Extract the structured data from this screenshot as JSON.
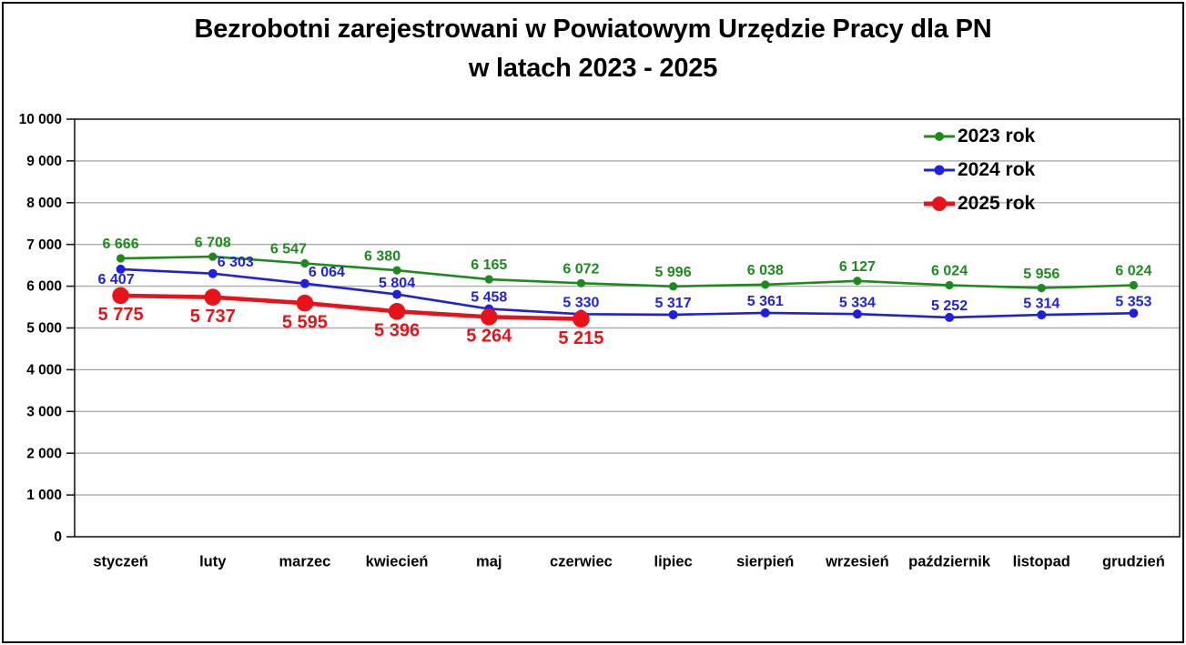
{
  "title": {
    "line1": "Bezrobotni zarejestrowani w Powiatowym Urzędzie Pracy dla PN",
    "line2": "w latach 2023 - 2025"
  },
  "chart_data": {
    "type": "line",
    "title": "Bezrobotni zarejestrowani w Powiatowym Urzędzie Pracy dla PN w latach 2023 - 2025",
    "categories": [
      "styczeń",
      "luty",
      "marzec",
      "kwiecień",
      "maj",
      "czerwiec",
      "lipiec",
      "sierpień",
      "wrzesień",
      "październik",
      "listopad",
      "grudzień"
    ],
    "series": [
      {
        "name": "2023 rok",
        "color": "#1e8a1e",
        "values": [
          6666,
          6708,
          6547,
          6380,
          6165,
          6072,
          5996,
          6038,
          6127,
          6024,
          5956,
          6024
        ]
      },
      {
        "name": "2024 rok",
        "color": "#1f1fe0",
        "values": [
          6407,
          6303,
          6064,
          5804,
          5458,
          5330,
          5317,
          5361,
          5334,
          5252,
          5314,
          5353
        ]
      },
      {
        "name": "2025 rok",
        "color": "#e8131a",
        "values": [
          5775,
          5737,
          5595,
          5396,
          5264,
          5215
        ]
      }
    ],
    "xlabel": "",
    "ylabel": "",
    "ylim": [
      0,
      10000
    ],
    "ytick_step": 1000,
    "ytick_labels": [
      "0",
      "1 000",
      "2 000",
      "3 000",
      "4 000",
      "5 000",
      "6 000",
      "7 000",
      "8 000",
      "9 000",
      "10 000"
    ],
    "grid": "horizontal",
    "gridline_color": "#ababab",
    "axis_color": "#1a1a1a",
    "label_color_follows_series": true,
    "legend_position": "top-right-inside",
    "number_format": "space-thousands",
    "data_labels": "on"
  }
}
